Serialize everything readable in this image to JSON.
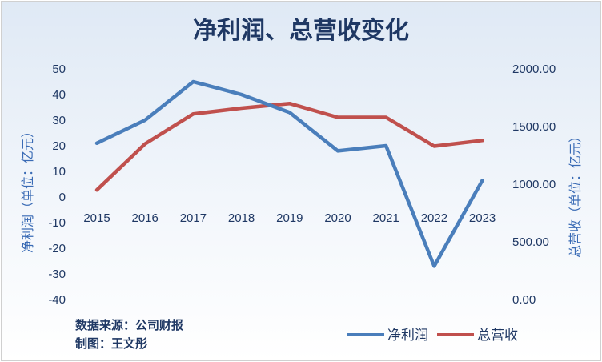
{
  "chart_data": {
    "type": "line",
    "title": "净利润、总营收变化",
    "categories": [
      "2015",
      "2016",
      "2017",
      "2018",
      "2019",
      "2020",
      "2021",
      "2022",
      "2023"
    ],
    "y_left": {
      "label": "净利润（单位：亿元）",
      "range": [
        -40,
        50
      ],
      "ticks": [
        "50",
        "40",
        "30",
        "20",
        "10",
        "0",
        "-10",
        "-20",
        "-30",
        "-40"
      ]
    },
    "y_right": {
      "label": "总营收（单位：亿元）",
      "range": [
        0,
        2000
      ],
      "ticks": [
        "2000.00",
        "1500.00",
        "1000.00",
        "500.00",
        "0.00"
      ]
    },
    "series": [
      {
        "name": "净利润",
        "axis": "left",
        "color": "#4a7ebb",
        "values": [
          21,
          30,
          45,
          40,
          33,
          18,
          20,
          -27,
          6.5
        ]
      },
      {
        "name": "总营收",
        "axis": "right",
        "color": "#c0504d",
        "values": [
          950,
          1350,
          1610,
          1660,
          1700,
          1580,
          1580,
          1330,
          1380
        ]
      }
    ],
    "legend_position": "bottom-right",
    "grid": false
  },
  "notes": {
    "source": "数据来源：公司财报",
    "author": "制图：王文彤"
  }
}
